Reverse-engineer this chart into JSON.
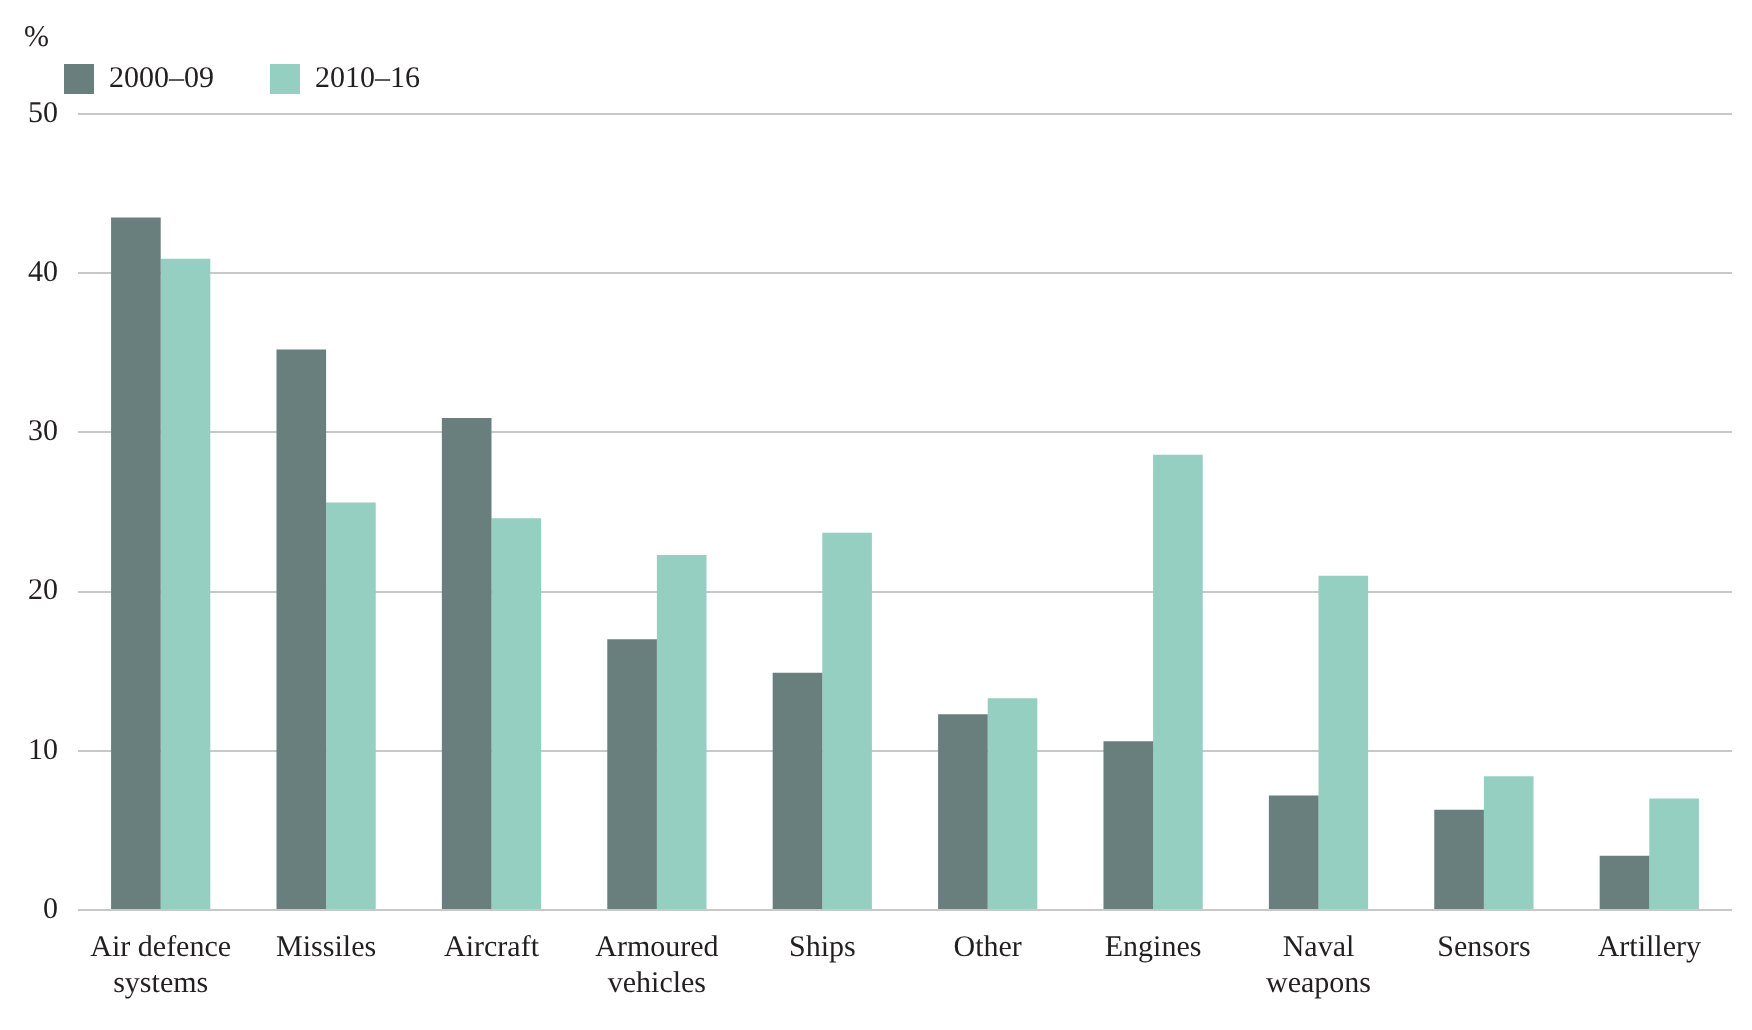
{
  "chart_data": {
    "type": "bar",
    "ylabel": "%",
    "categories": [
      "Air defence systems",
      "Missiles",
      "Aircraft",
      "Armoured vehicles",
      "Ships",
      "Other",
      "Engines",
      "Naval weapons",
      "Sensors",
      "Artillery"
    ],
    "series": [
      {
        "name": "2000–09",
        "color": "#697f7d",
        "values": [
          43.5,
          35.2,
          30.9,
          17.0,
          14.9,
          12.3,
          10.6,
          7.2,
          6.3,
          3.4
        ]
      },
      {
        "name": "2010–16",
        "color": "#94cfc1",
        "values": [
          40.9,
          25.6,
          24.6,
          22.3,
          23.7,
          13.3,
          28.6,
          21.0,
          8.4,
          7.0
        ]
      }
    ],
    "ylim": [
      0,
      50
    ],
    "yticks": [
      0,
      10,
      20,
      30,
      40,
      50
    ],
    "grid": "y",
    "legend": "top left"
  }
}
